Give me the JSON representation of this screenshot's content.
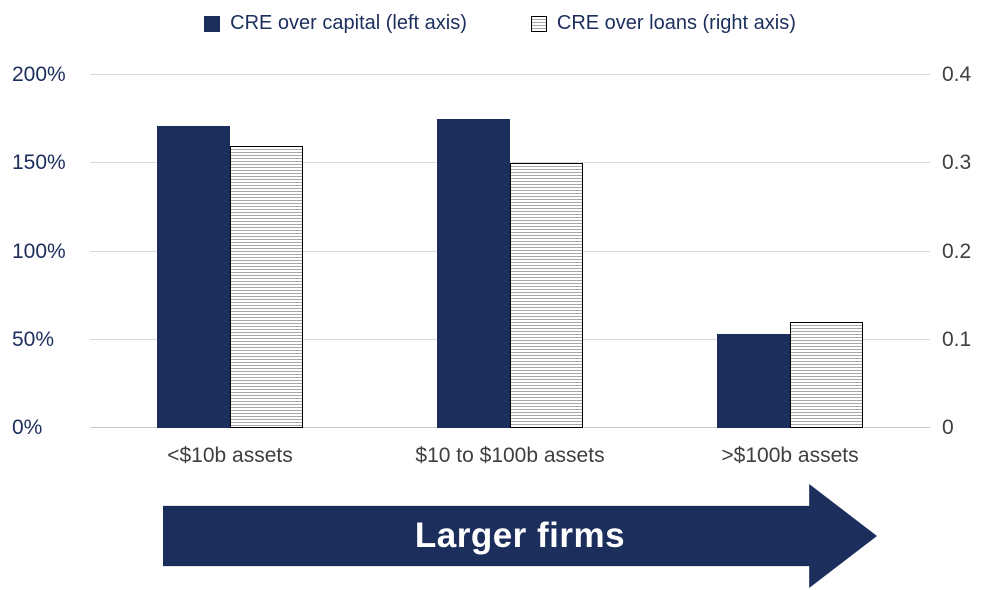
{
  "chart_data": {
    "type": "bar",
    "title": "",
    "categories": [
      "<$10b assets",
      "$10 to $100b assets",
      ">$100b assets"
    ],
    "series": [
      {
        "name": "CRE over capital (left axis)",
        "axis": "left",
        "swatch": "navy",
        "values": [
          171,
          175,
          53
        ],
        "unit": "percent"
      },
      {
        "name": "CRE over loans (right axis)",
        "axis": "right",
        "swatch": "striped",
        "values": [
          0.32,
          0.3,
          0.12
        ],
        "unit": "ratio"
      }
    ],
    "left_axis": {
      "min": 0,
      "max": 200,
      "ticks": [
        "0%",
        "50%",
        "100%",
        "150%",
        "200%"
      ]
    },
    "right_axis": {
      "min": 0,
      "max": 0.4,
      "ticks": [
        "0",
        "0.1",
        "0.2",
        "0.3",
        "0.4"
      ]
    },
    "grid": true,
    "legend_position": "top"
  },
  "annotation": {
    "arrow_label": "Larger firms"
  },
  "colors": {
    "navy": "#1b2e5c",
    "gridline": "#d9d9d9",
    "axis_text_gray": "#3f3f3f",
    "stripe": "#a8a8a8",
    "bar_border": "#000000"
  }
}
